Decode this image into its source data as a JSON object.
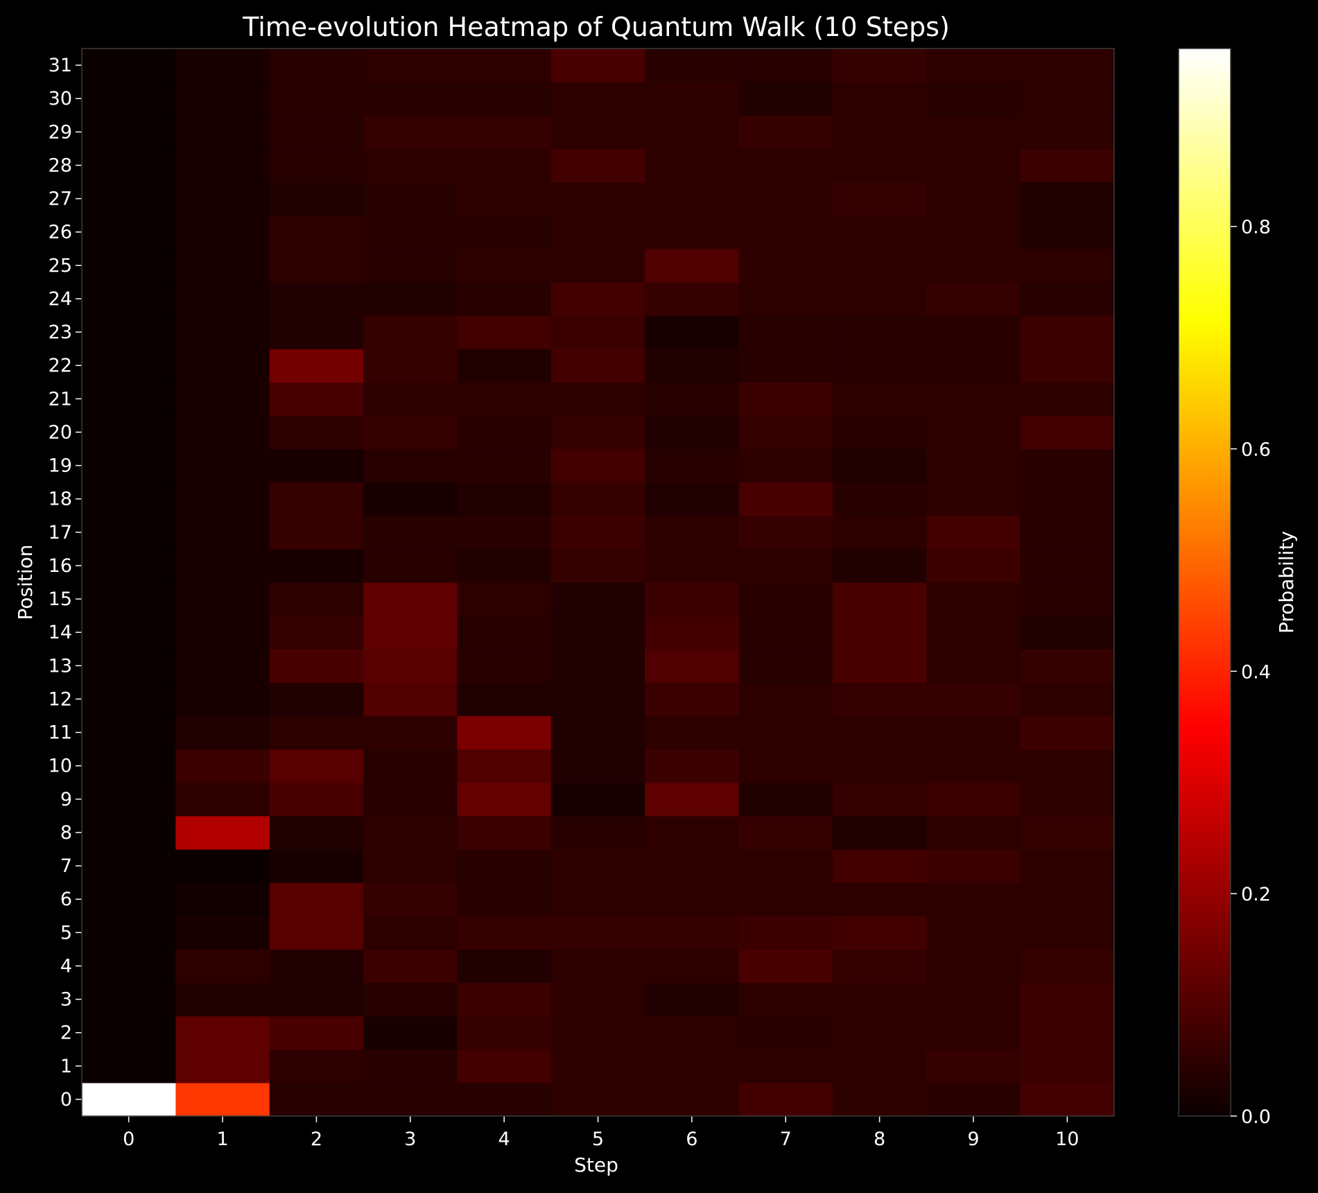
{
  "chart_data": {
    "type": "heatmap",
    "title": "Time-evolution Heatmap of Quantum Walk (10 Steps)",
    "xlabel": "Step",
    "ylabel": "Position",
    "x": [
      0,
      1,
      2,
      3,
      4,
      5,
      6,
      7,
      8,
      9,
      10
    ],
    "y": [
      0,
      1,
      2,
      3,
      4,
      5,
      6,
      7,
      8,
      9,
      10,
      11,
      12,
      13,
      14,
      15,
      16,
      17,
      18,
      19,
      20,
      21,
      22,
      23,
      24,
      25,
      26,
      27,
      28,
      29,
      30,
      31
    ],
    "colormap": "hot",
    "colorbar": {
      "label": "Probability",
      "range": [
        0,
        0.96
      ],
      "ticks": [
        "0.0",
        "0.2",
        "0.4",
        "0.6",
        "0.8"
      ]
    },
    "values": [
      [
        0.96,
        0.0,
        0.0,
        0.0,
        0.0,
        0.0,
        0.0,
        0.0,
        0.0,
        0.0,
        0.0,
        0.0,
        0.0,
        0.0,
        0.0,
        0.0,
        0.0,
        0.0,
        0.0,
        0.0,
        0.0,
        0.0,
        0.0,
        0.0,
        0.0,
        0.0,
        0.0,
        0.0,
        0.0,
        0.0,
        0.0,
        0.0
      ],
      [
        0.43,
        0.12,
        0.12,
        0.03,
        0.05,
        0.02,
        0.01,
        0.0,
        0.24,
        0.05,
        0.07,
        0.03,
        0.02,
        0.02,
        0.02,
        0.02,
        0.02,
        0.02,
        0.02,
        0.02,
        0.02,
        0.02,
        0.02,
        0.02,
        0.02,
        0.02,
        0.02,
        0.02,
        0.02,
        0.02,
        0.02,
        0.02
      ],
      [
        0.04,
        0.05,
        0.09,
        0.03,
        0.03,
        0.11,
        0.11,
        0.02,
        0.03,
        0.09,
        0.11,
        0.05,
        0.03,
        0.09,
        0.06,
        0.05,
        0.02,
        0.06,
        0.06,
        0.02,
        0.05,
        0.09,
        0.15,
        0.03,
        0.03,
        0.05,
        0.05,
        0.03,
        0.04,
        0.04,
        0.04,
        0.04
      ],
      [
        0.04,
        0.04,
        0.02,
        0.04,
        0.07,
        0.05,
        0.06,
        0.05,
        0.05,
        0.04,
        0.04,
        0.05,
        0.1,
        0.11,
        0.12,
        0.12,
        0.04,
        0.04,
        0.02,
        0.04,
        0.06,
        0.05,
        0.06,
        0.06,
        0.03,
        0.04,
        0.04,
        0.04,
        0.05,
        0.06,
        0.04,
        0.05
      ],
      [
        0.04,
        0.08,
        0.06,
        0.07,
        0.03,
        0.06,
        0.04,
        0.04,
        0.07,
        0.13,
        0.1,
        0.16,
        0.03,
        0.04,
        0.04,
        0.05,
        0.03,
        0.04,
        0.03,
        0.04,
        0.04,
        0.05,
        0.03,
        0.08,
        0.04,
        0.05,
        0.04,
        0.05,
        0.05,
        0.06,
        0.04,
        0.05
      ],
      [
        0.05,
        0.05,
        0.05,
        0.05,
        0.05,
        0.06,
        0.05,
        0.05,
        0.04,
        0.02,
        0.03,
        0.03,
        0.03,
        0.03,
        0.03,
        0.03,
        0.06,
        0.07,
        0.06,
        0.08,
        0.06,
        0.05,
        0.08,
        0.07,
        0.08,
        0.05,
        0.05,
        0.05,
        0.08,
        0.05,
        0.05,
        0.09
      ],
      [
        0.05,
        0.05,
        0.05,
        0.03,
        0.05,
        0.06,
        0.05,
        0.05,
        0.05,
        0.12,
        0.07,
        0.05,
        0.07,
        0.1,
        0.08,
        0.07,
        0.05,
        0.05,
        0.03,
        0.04,
        0.03,
        0.04,
        0.03,
        0.02,
        0.06,
        0.1,
        0.05,
        0.05,
        0.05,
        0.05,
        0.05,
        0.04
      ],
      [
        0.08,
        0.05,
        0.04,
        0.05,
        0.09,
        0.07,
        0.05,
        0.05,
        0.06,
        0.03,
        0.05,
        0.05,
        0.05,
        0.04,
        0.04,
        0.04,
        0.05,
        0.06,
        0.09,
        0.05,
        0.06,
        0.07,
        0.04,
        0.04,
        0.05,
        0.05,
        0.05,
        0.05,
        0.05,
        0.06,
        0.03,
        0.04
      ],
      [
        0.05,
        0.05,
        0.05,
        0.05,
        0.06,
        0.08,
        0.05,
        0.08,
        0.03,
        0.06,
        0.05,
        0.05,
        0.06,
        0.09,
        0.09,
        0.09,
        0.03,
        0.05,
        0.04,
        0.03,
        0.04,
        0.05,
        0.04,
        0.04,
        0.05,
        0.05,
        0.05,
        0.06,
        0.05,
        0.05,
        0.05,
        0.06
      ],
      [
        0.04,
        0.06,
        0.05,
        0.05,
        0.05,
        0.05,
        0.05,
        0.07,
        0.05,
        0.07,
        0.05,
        0.05,
        0.06,
        0.05,
        0.05,
        0.05,
        0.07,
        0.08,
        0.05,
        0.05,
        0.05,
        0.05,
        0.04,
        0.04,
        0.06,
        0.05,
        0.05,
        0.05,
        0.05,
        0.05,
        0.04,
        0.05
      ],
      [
        0.08,
        0.07,
        0.07,
        0.07,
        0.06,
        0.05,
        0.05,
        0.05,
        0.06,
        0.05,
        0.05,
        0.07,
        0.05,
        0.06,
        0.03,
        0.04,
        0.04,
        0.04,
        0.04,
        0.04,
        0.08,
        0.05,
        0.07,
        0.07,
        0.04,
        0.05,
        0.03,
        0.03,
        0.07,
        0.05,
        0.05,
        0.05
      ]
    ]
  }
}
